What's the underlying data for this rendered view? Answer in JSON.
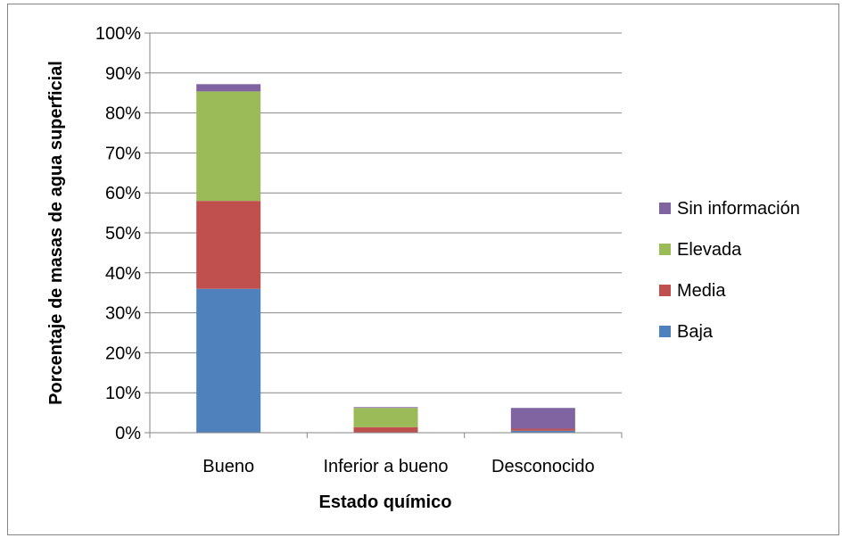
{
  "chart_data": {
    "type": "bar",
    "stacked": true,
    "title": "",
    "xlabel": "Estado químico",
    "ylabel": "Porcentaje de masas de agua superficial",
    "categories": [
      "Bueno",
      "Inferior a bueno",
      "Desconocido"
    ],
    "ylim": [
      0,
      100
    ],
    "y_ticks": [
      0,
      10,
      20,
      30,
      40,
      50,
      60,
      70,
      80,
      90,
      100
    ],
    "y_tick_labels": [
      "0%",
      "10%",
      "20%",
      "30%",
      "40%",
      "50%",
      "60%",
      "70%",
      "80%",
      "90%",
      "100%"
    ],
    "grid": true,
    "legend_position": "right",
    "series": [
      {
        "name": "Baja",
        "color": "#4f81bd",
        "values": [
          36.0,
          0.0,
          0.5
        ]
      },
      {
        "name": "Media",
        "color": "#c0504d",
        "values": [
          22.0,
          1.4,
          0.5
        ]
      },
      {
        "name": "Elevada",
        "color": "#9bbb59",
        "values": [
          27.4,
          4.8,
          0.0
        ]
      },
      {
        "name": "Sin información",
        "color": "#8064a2",
        "values": [
          1.8,
          0.2,
          5.2
        ]
      }
    ]
  }
}
